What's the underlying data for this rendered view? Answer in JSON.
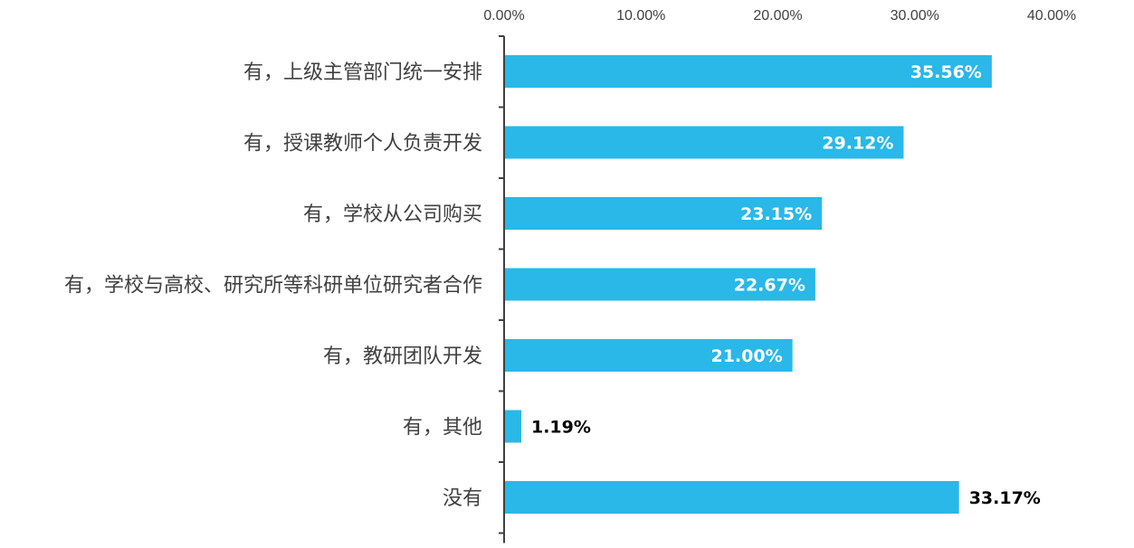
{
  "chart_data": {
    "type": "bar",
    "orientation": "horizontal",
    "categories": [
      "有，上级主管部门统一安排",
      "有，授课教师个人负责开发",
      "有，学校从公司购买",
      "有，学校与高校、研究所等科研单位研究者合作",
      "有，教研团队开发",
      "有，其他",
      "没有"
    ],
    "values": [
      35.56,
      29.12,
      23.15,
      22.67,
      21.0,
      1.19,
      33.17
    ],
    "value_labels": [
      "35.56%",
      "29.12%",
      "23.15%",
      "22.67%",
      "21.00%",
      "1.19%",
      "33.17%"
    ],
    "label_inside": [
      true,
      true,
      true,
      true,
      true,
      false,
      false
    ],
    "x_ticks": [
      "0.00%",
      "10.00%",
      "20.00%",
      "30.00%",
      "40.00%"
    ],
    "x_tick_values": [
      0,
      10,
      20,
      30,
      40
    ],
    "xlim": [
      0,
      40
    ],
    "x_axis_position": "top",
    "grid": false,
    "colors": {
      "bar": "#29B8E8",
      "axis": "#404040",
      "label_inside": "#ffffff",
      "label_outside": "#000000"
    }
  }
}
